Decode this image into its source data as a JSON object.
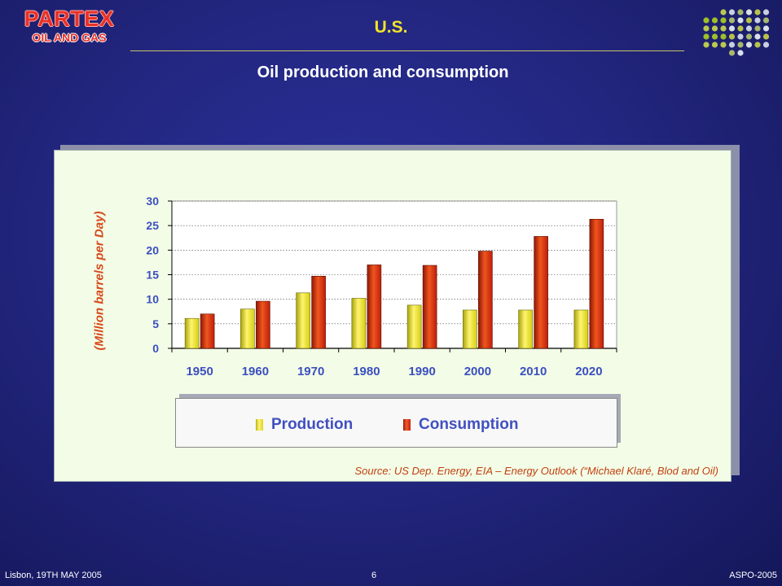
{
  "header": {
    "logo_name": "PARTEX",
    "logo_sub": "OIL AND GAS",
    "title": "U.S.",
    "subtitle": "Oil production and consumption"
  },
  "footer": {
    "left": "Lisbon, 19TH MAY 2005",
    "center": "6",
    "right": "ASPO-2005"
  },
  "colors": {
    "title": "#f2e22a",
    "production": "#e4e01a",
    "consumption": "#cc2410",
    "axis_label": "#d6491b",
    "legend_text": "#4050c0"
  },
  "chart_data": {
    "type": "bar",
    "categories": [
      "1950",
      "1960",
      "1970",
      "1980",
      "1990",
      "2000",
      "2010",
      "2020"
    ],
    "series": [
      {
        "name": "Production",
        "values": [
          6.1,
          8.0,
          11.3,
          10.2,
          8.8,
          7.8,
          7.8,
          7.8
        ]
      },
      {
        "name": "Consumption",
        "values": [
          7.0,
          9.6,
          14.7,
          17.0,
          16.9,
          19.8,
          22.8,
          26.3
        ]
      }
    ],
    "ylim": [
      0,
      30
    ],
    "yticks": [
      "0",
      "5",
      "10",
      "15",
      "20",
      "25",
      "30"
    ],
    "ylabel": "(Million barrels per Day)",
    "xlabel": "",
    "grid": true,
    "legend_position": "bottom",
    "source": "Source: US Dep. Energy, EIA – Energy Outlook (“Michael Klaré, Blod and Oil)"
  }
}
